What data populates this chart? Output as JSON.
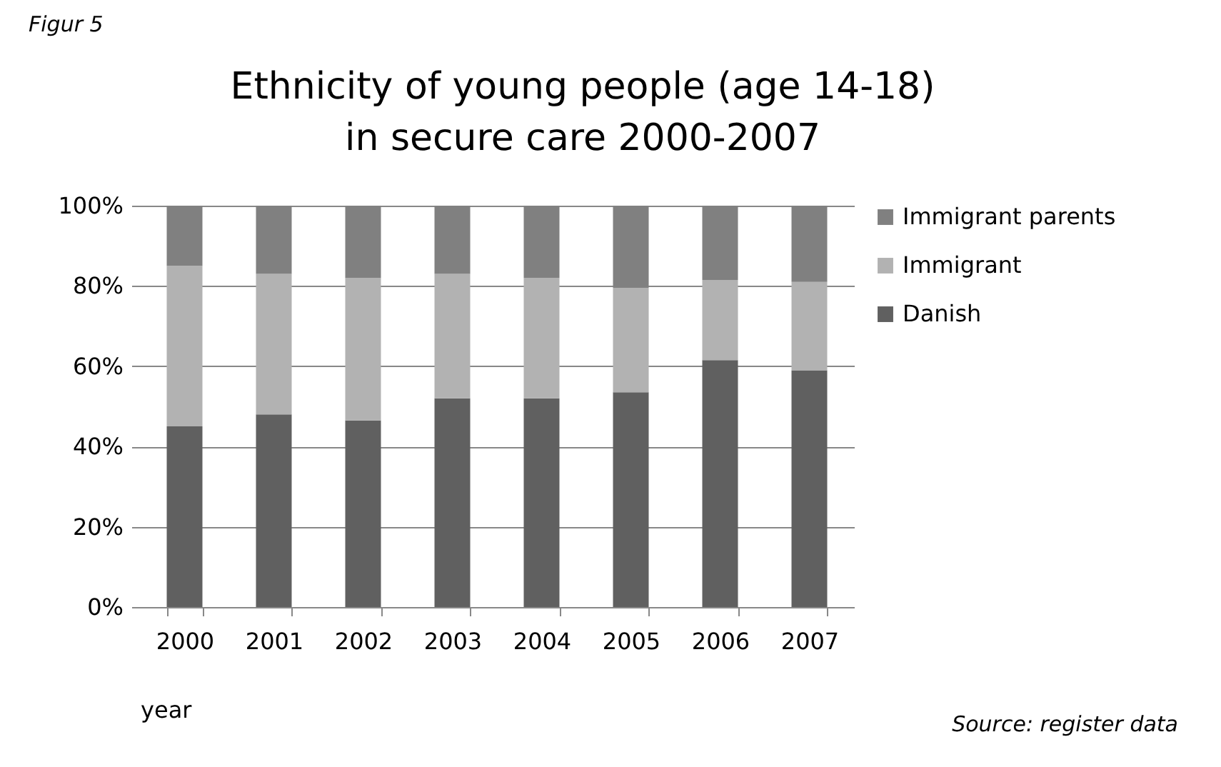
{
  "chart_data": {
    "type": "bar",
    "title": "Ethnicity of young people (age 14-18) in secure care 2000-2007",
    "xlabel": "year",
    "annotations": [
      "Figur 5",
      "Source: register data"
    ],
    "categories": [
      "2000",
      "2001",
      "2002",
      "2003",
      "2004",
      "2005",
      "2006",
      "2007"
    ],
    "stacked": true,
    "series": [
      {
        "name": "Danish",
        "color": "#606060",
        "values": [
          45,
          48,
          46.5,
          52,
          52,
          53.5,
          61.5,
          59
        ]
      },
      {
        "name": "Immigrant",
        "color": "#b2b2b2",
        "values": [
          40,
          35,
          35.5,
          31,
          30,
          26,
          20,
          22
        ]
      },
      {
        "name": "Immigrant parents",
        "color": "#808080",
        "values": [
          15,
          17,
          18,
          17,
          18,
          20.5,
          18.5,
          19
        ]
      }
    ],
    "ylim": [
      0,
      100
    ],
    "yticks": [
      {
        "value": 0,
        "label": "0%"
      },
      {
        "value": 20,
        "label": "20%"
      },
      {
        "value": 40,
        "label": "40%"
      },
      {
        "value": 60,
        "label": "60%"
      },
      {
        "value": 80,
        "label": "80%"
      },
      {
        "value": 100,
        "label": "100%"
      }
    ],
    "grid": "y",
    "legend": "right"
  }
}
